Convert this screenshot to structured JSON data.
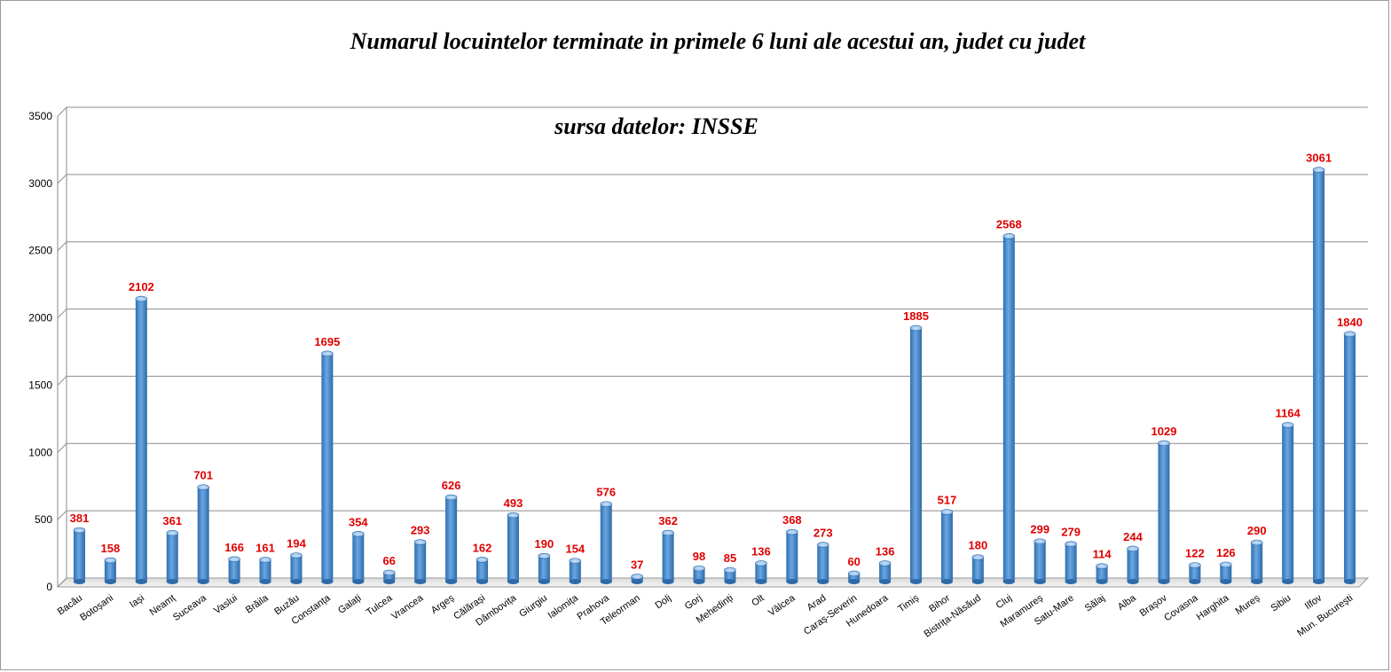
{
  "chart_data": {
    "type": "bar",
    "title": "Numarul locuintelor terminate in primele 6 luni ale acestui an, judet cu judet",
    "subtitle": "sursa datelor: INSSE",
    "xlabel": "",
    "ylabel": "",
    "ylim": [
      0,
      3500
    ],
    "yticks": [
      0,
      500,
      1000,
      1500,
      2000,
      2500,
      3000,
      3500
    ],
    "grid": true,
    "legend": "none",
    "bar_color": "#4a8fd4",
    "label_color": "#e00000",
    "categories": [
      "Bacău",
      "Botoșani",
      "Iași",
      "Neamț",
      "Suceava",
      "Vaslui",
      "Brăila",
      "Buzău",
      "Constanța",
      "Galați",
      "Tulcea",
      "Vrancea",
      "Argeș",
      "Călărași",
      "Dâmbovița",
      "Giurgiu",
      "Ialomița",
      "Prahova",
      "Teleorman",
      "Dolj",
      "Gorj",
      "Mehedinți",
      "Olt",
      "Vâlcea",
      "Arad",
      "Caraș-Severin",
      "Hunedoara",
      "Timiș",
      "Bihor",
      "Bistrița-Năsăud",
      "Cluj",
      "Maramureș",
      "Satu-Mare",
      "Sălaj",
      "Alba",
      "Brașov",
      "Covasna",
      "Harghita",
      "Mureș",
      "Sibiu",
      "Ilfov",
      "Mun. București"
    ],
    "values": [
      381,
      158,
      2102,
      361,
      701,
      166,
      161,
      194,
      1695,
      354,
      66,
      293,
      626,
      162,
      493,
      190,
      154,
      576,
      37,
      362,
      98,
      85,
      136,
      368,
      273,
      60,
      136,
      1885,
      517,
      180,
      2568,
      299,
      279,
      114,
      244,
      1029,
      122,
      126,
      290,
      1164,
      3061,
      1840
    ]
  }
}
